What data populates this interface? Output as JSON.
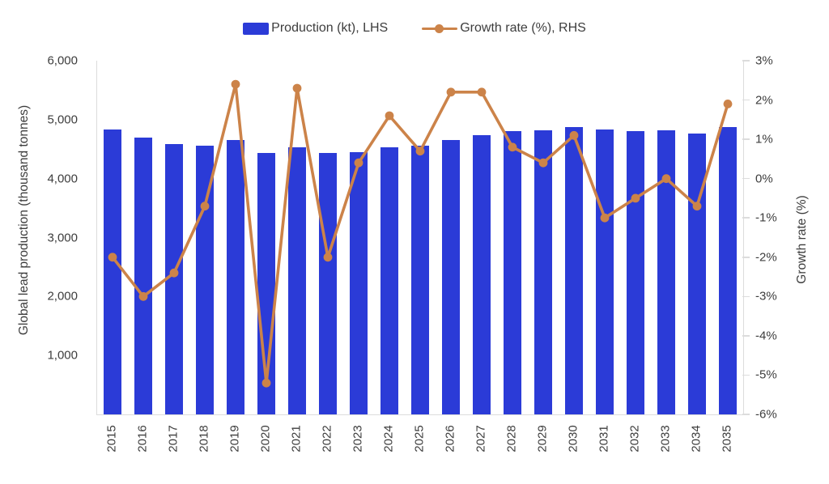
{
  "legend": {
    "production_label": "Production (kt), LHS",
    "growth_label": "Growth rate (%), RHS"
  },
  "colors": {
    "bar": "#2b3bd7",
    "line": "#cc8349",
    "axis_line": "#dcdcdc",
    "text": "#3d3d3d",
    "background": "#ffffff"
  },
  "chart_data": {
    "type": "bar+line combo",
    "grid": false,
    "legend_position": "top-center",
    "categories": [
      "2015",
      "2016",
      "2017",
      "2018",
      "2019",
      "2020",
      "2021",
      "2022",
      "2023",
      "2024",
      "2025",
      "2026",
      "2027",
      "2028",
      "2029",
      "2030",
      "2031",
      "2032",
      "2033",
      "2034",
      "2035"
    ],
    "series": [
      {
        "name": "Production (kt), LHS",
        "type": "bar",
        "axis": "left",
        "color": "#2b3bd7",
        "values": [
          4840,
          4700,
          4590,
          4560,
          4660,
          4430,
          4530,
          4440,
          4450,
          4530,
          4560,
          4650,
          4740,
          4800,
          4820,
          4870,
          4840,
          4810,
          4820,
          4770,
          4870
        ]
      },
      {
        "name": "Growth rate (%), RHS",
        "type": "line",
        "axis": "right",
        "color": "#cc8349",
        "values": [
          -2.0,
          -3.0,
          -2.4,
          -0.7,
          2.4,
          -5.2,
          2.3,
          -2.0,
          0.4,
          1.6,
          0.7,
          2.2,
          2.2,
          0.8,
          0.4,
          1.1,
          -1.0,
          -0.5,
          0.0,
          -0.7,
          1.9
        ]
      }
    ],
    "left_axis": {
      "title": "Global lead production (thousand tonnes)",
      "min": 0,
      "max": 6000,
      "ticks": [
        6000,
        5000,
        4000,
        3000,
        2000,
        1000
      ],
      "tick_labels": [
        "6,000",
        "5,000",
        "4,000",
        "3,000",
        "2,000",
        "1,000"
      ]
    },
    "right_axis": {
      "title": "Growth rate (%)",
      "min": -6,
      "max": 3,
      "ticks": [
        3,
        2,
        1,
        0,
        -1,
        -2,
        -3,
        -4,
        -5,
        -6
      ],
      "tick_labels": [
        "3%",
        "2%",
        "1%",
        "0%",
        "-1%",
        "-2%",
        "-3%",
        "-4%",
        "-5%",
        "-6%"
      ]
    }
  }
}
